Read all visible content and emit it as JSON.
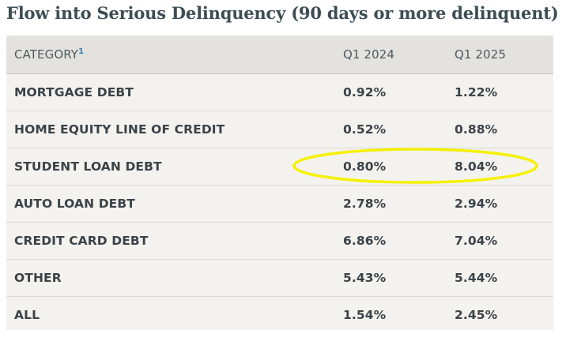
{
  "title": "Flow into Serious Delinquency (90 days or more delinquent)",
  "header": {
    "category": "CATEGORY",
    "footnote": "1",
    "col1": "Q1 2024",
    "col2": "Q1 2025"
  },
  "chart_data": {
    "type": "table",
    "title": "Flow into Serious Delinquency (90 days or more delinquent)",
    "columns": [
      "CATEGORY",
      "Q1 2024",
      "Q1 2025"
    ],
    "rows": [
      {
        "category": "MORTGAGE DEBT",
        "q1_2024": "0.92%",
        "q1_2025": "1.22%"
      },
      {
        "category": "HOME EQUITY LINE OF CREDIT",
        "q1_2024": "0.52%",
        "q1_2025": "0.88%"
      },
      {
        "category": "STUDENT LOAN DEBT",
        "q1_2024": "0.80%",
        "q1_2025": "8.04%"
      },
      {
        "category": "AUTO LOAN DEBT",
        "q1_2024": "2.78%",
        "q1_2025": "2.94%"
      },
      {
        "category": "CREDIT CARD DEBT",
        "q1_2024": "6.86%",
        "q1_2025": "7.04%"
      },
      {
        "category": "OTHER",
        "q1_2024": "5.43%",
        "q1_2025": "5.44%"
      },
      {
        "category": "ALL",
        "q1_2024": "1.54%",
        "q1_2025": "2.45%"
      }
    ],
    "highlighted_row": "STUDENT LOAN DEBT"
  },
  "colors": {
    "title": "#3d4d54",
    "header_bg": "#e4e2de",
    "table_bg": "#f4f2ee",
    "text": "#3a4349",
    "footnote": "#3b7fb0",
    "highlight": "#f5f000"
  }
}
